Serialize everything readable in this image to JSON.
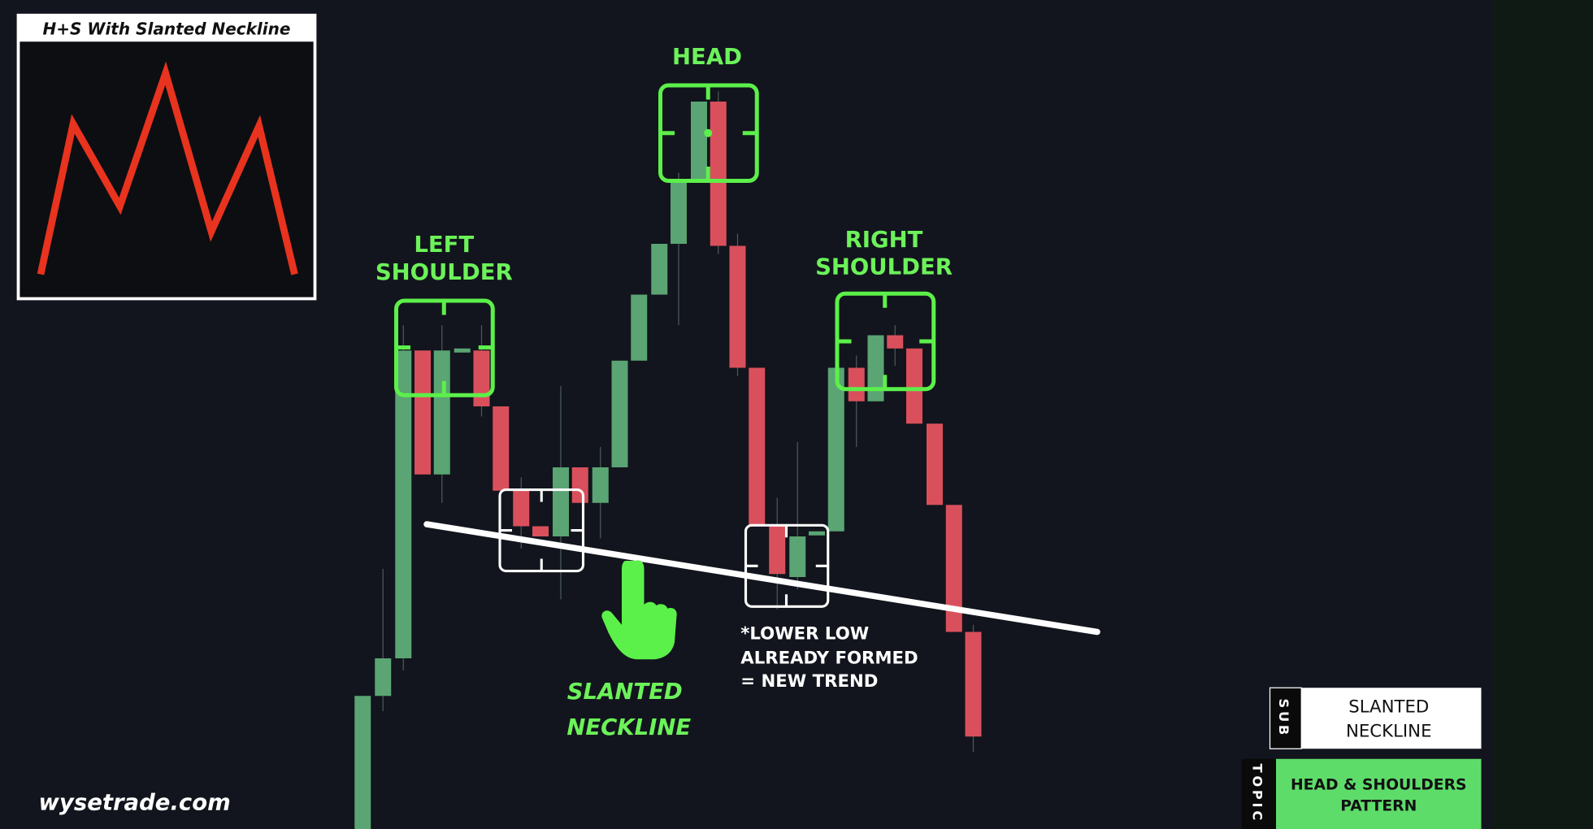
{
  "inset": {
    "title": "H+S With Slanted Neckline"
  },
  "labels": {
    "head": "HEAD",
    "left_shoulder": [
      "LEFT",
      "SHOULDER"
    ],
    "right_shoulder": [
      "RIGHT",
      "SHOULDER"
    ],
    "neckline": [
      "SLANTED",
      "NECKLINE"
    ]
  },
  "annotation": [
    "*LOWER LOW",
    "ALREADY FORMED",
    "= NEW TREND"
  ],
  "watermark": "wysetrade.com",
  "lower_third": {
    "sub": {
      "tag": "SUB",
      "text": [
        "SLANTED",
        "NECKLINE"
      ]
    },
    "topic": {
      "tag": "TOPIC",
      "text": [
        "HEAD & SHOULDERS",
        "PATTERN"
      ]
    }
  }
}
